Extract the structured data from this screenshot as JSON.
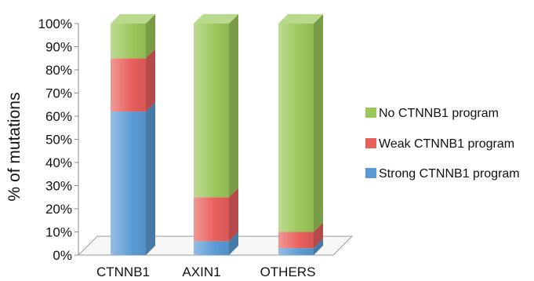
{
  "chart_data": {
    "type": "bar",
    "stacked": true,
    "style": "3d",
    "categories": [
      "CTNNB1",
      "AXIN1",
      "OTHERS"
    ],
    "series": [
      {
        "name": "Strong CTNNB1 program",
        "values": [
          62,
          6,
          3
        ],
        "color": "#5b9bd5"
      },
      {
        "name": "Weak CTNNB1 program",
        "values": [
          23,
          19,
          7
        ],
        "color": "#e8605c"
      },
      {
        "name": "No CTNNB1 program",
        "values": [
          15,
          75,
          90
        ],
        "color": "#9bc85a"
      }
    ],
    "ylabel": "% of mutations",
    "ylim": [
      0,
      100
    ],
    "yticks": [
      "0%",
      "10%",
      "20%",
      "30%",
      "40%",
      "50%",
      "60%",
      "70%",
      "80%",
      "90%",
      "100%"
    ],
    "grid": false,
    "legend_position": "right",
    "legend_order": [
      "No CTNNB1 program",
      "Weak CTNNB1 program",
      "Strong CTNNB1 program"
    ]
  }
}
